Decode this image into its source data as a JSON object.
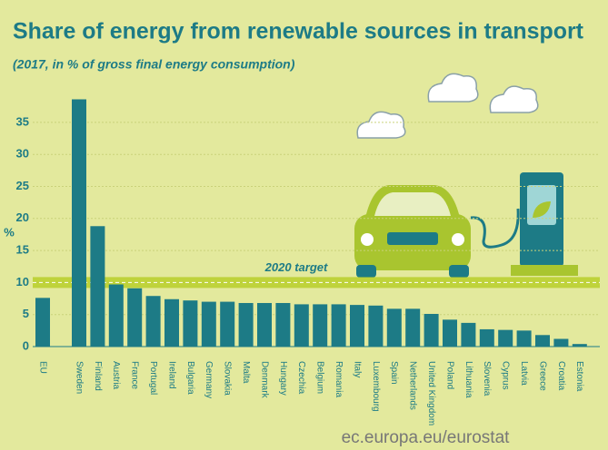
{
  "chart_data": {
    "type": "bar",
    "title": "Share of energy from renewable sources in transport",
    "subtitle": "(2017, in % of gross final energy consumption)",
    "y_label": "%",
    "categories": [
      "EU",
      "Sweden",
      "Finland",
      "Austria",
      "France",
      "Portugal",
      "Ireland",
      "Bulgaria",
      "Germany",
      "Slovakia",
      "Malta",
      "Denmark",
      "Hungary",
      "Czechia",
      "Belgium",
      "Romania",
      "Italy",
      "Luxembourg",
      "Spain",
      "Netherlands",
      "United Kingdom",
      "Poland",
      "Lithuania",
      "Slovenia",
      "Cyprus",
      "Latvia",
      "Greece",
      "Croatia",
      "Estonia"
    ],
    "values": [
      7.6,
      38.6,
      18.8,
      9.7,
      9.1,
      7.9,
      7.4,
      7.2,
      7.0,
      7.0,
      6.8,
      6.8,
      6.8,
      6.6,
      6.6,
      6.6,
      6.5,
      6.4,
      5.9,
      5.9,
      5.1,
      4.2,
      3.7,
      2.7,
      2.6,
      2.5,
      1.8,
      1.2,
      0.4
    ],
    "color": "#1d7b86",
    "ylim": [
      0,
      40
    ],
    "yticks": [
      0,
      5,
      10,
      15,
      20,
      25,
      30,
      35
    ],
    "target": {
      "value": 10,
      "label": "2020 target"
    },
    "source": "ec.europa.eu/eurostat"
  }
}
